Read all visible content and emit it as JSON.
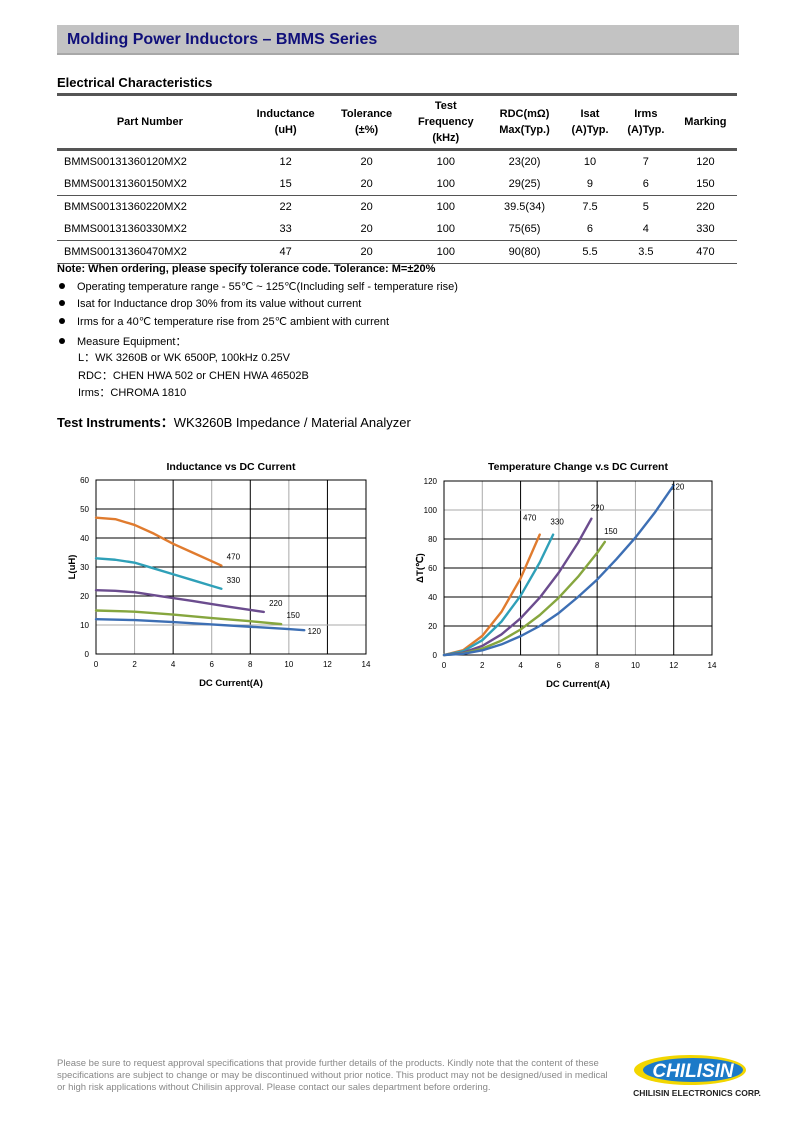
{
  "header": {
    "title": "Molding Power Inductors – BMMS Series"
  },
  "section_title": "Electrical Characteristics",
  "table": {
    "headers": [
      [
        "Part Number"
      ],
      [
        "Inductance",
        "(uH)"
      ],
      [
        "Tolerance",
        "(±%)"
      ],
      [
        "Test",
        "Frequency",
        "(kHz)"
      ],
      [
        "RDC(mΩ)",
        "Max(Typ.)"
      ],
      [
        "Isat",
        "(A)Typ."
      ],
      [
        "Irms",
        "(A)Typ."
      ],
      [
        "Marking"
      ]
    ],
    "rows": [
      [
        "BMMS00131360120MX2",
        "12",
        "20",
        "100",
        "23(20)",
        "10",
        "7",
        "120"
      ],
      [
        "BMMS00131360150MX2",
        "15",
        "20",
        "100",
        "29(25)",
        "9",
        "6",
        "150"
      ],
      [
        "BMMS00131360220MX2",
        "22",
        "20",
        "100",
        "39.5(34)",
        "7.5",
        "5",
        "220"
      ],
      [
        "BMMS00131360330MX2",
        "33",
        "20",
        "100",
        "75(65)",
        "6",
        "4",
        "330"
      ],
      [
        "BMMS00131360470MX2",
        "47",
        "20",
        "100",
        "90(80)",
        "5.5",
        "3.5",
        "470"
      ]
    ]
  },
  "note": "Note: When ordering, please specify tolerance code. Tolerance: M=±20%",
  "bullets": [
    "Operating temperature range - 55℃ ~ 125℃(Including self - temperature rise)",
    "Isat for Inductance drop 30% from its value without current",
    "Irms for a 40℃  temperature rise from 25℃  ambient with current",
    "Measure Equipment："
  ],
  "equipment": [
    "L：WK 3260B or WK 6500P, 100kHz 0.25V",
    "RDC：CHEN HWA 502 or CHEN HWA 46502B",
    "Irms：CHROMA 1810"
  ],
  "test_instruments": {
    "label": "Test Instruments：",
    "value": "WK3260B Impedance / Material Analyzer"
  },
  "chart_data": [
    {
      "type": "line",
      "title": "Inductance vs DC Current",
      "xlabel": "DC Current(A)",
      "ylabel": "L(uH)",
      "xlim": [
        0,
        14
      ],
      "ylim": [
        0,
        60
      ],
      "xticks": [
        0,
        2,
        4,
        6,
        8,
        10,
        12,
        14
      ],
      "yticks": [
        0,
        10,
        20,
        30,
        40,
        50,
        60
      ],
      "grid": true,
      "series": [
        {
          "name": "470",
          "color": "#e07b2e",
          "x": [
            0,
            1,
            2,
            3,
            4,
            5,
            6,
            6.5
          ],
          "y": [
            47,
            46.5,
            44.5,
            41.5,
            38,
            35,
            32,
            30.5
          ]
        },
        {
          "name": "330",
          "color": "#2fa0b8",
          "x": [
            0,
            1,
            2,
            3,
            4,
            5,
            6,
            6.5
          ],
          "y": [
            33,
            32.5,
            31.5,
            29.5,
            27.5,
            25.5,
            23.5,
            22.5
          ]
        },
        {
          "name": "220",
          "color": "#6b4c8e",
          "x": [
            0,
            1,
            2,
            3,
            4,
            5,
            6,
            7,
            8,
            8.7
          ],
          "y": [
            22,
            21.8,
            21.3,
            20.3,
            19.3,
            18.3,
            17.2,
            16.2,
            15.2,
            14.5
          ]
        },
        {
          "name": "150",
          "color": "#86a63e",
          "x": [
            0,
            2,
            4,
            6,
            8,
            9.6
          ],
          "y": [
            15,
            14.6,
            13.6,
            12.4,
            11.3,
            10.3
          ]
        },
        {
          "name": "120",
          "color": "#3d6fb4",
          "x": [
            0,
            2,
            4,
            6,
            8,
            10,
            10.8
          ],
          "y": [
            12,
            11.7,
            11,
            10.2,
            9.4,
            8.6,
            8.2
          ]
        }
      ]
    },
    {
      "type": "line",
      "title": "Temperature Change v.s DC Current",
      "xlabel": "DC Current(A)",
      "ylabel": "ΔT(℃)",
      "xlim": [
        0,
        14
      ],
      "ylim": [
        0,
        120
      ],
      "xticks": [
        0,
        2,
        4,
        6,
        8,
        10,
        12,
        14
      ],
      "yticks": [
        0,
        20,
        40,
        60,
        80,
        100,
        120
      ],
      "grid": true,
      "series": [
        {
          "name": "470",
          "color": "#e07b2e",
          "x": [
            0,
            1,
            2,
            3,
            4,
            5
          ],
          "y": [
            0,
            3.3,
            13.2,
            29.7,
            52.8,
            83
          ]
        },
        {
          "name": "330",
          "color": "#2fa0b8",
          "x": [
            0,
            1,
            2,
            3,
            4,
            5,
            5.7
          ],
          "y": [
            0,
            2.6,
            10.2,
            23,
            40.8,
            63.8,
            83
          ]
        },
        {
          "name": "220",
          "color": "#6b4c8e",
          "x": [
            0,
            1,
            2,
            3,
            4,
            5,
            6,
            7,
            7.7
          ],
          "y": [
            0,
            1.6,
            6.3,
            14.2,
            25.3,
            39.5,
            56.9,
            77.4,
            94
          ]
        },
        {
          "name": "150",
          "color": "#86a63e",
          "x": [
            0,
            1,
            2,
            3,
            4,
            5,
            6,
            7,
            8,
            8.4
          ],
          "y": [
            0,
            1.1,
            4.4,
            9.9,
            17.6,
            27.5,
            39.6,
            53.9,
            70.4,
            78
          ]
        },
        {
          "name": "120",
          "color": "#3d6fb4",
          "x": [
            0,
            1,
            2,
            3,
            4,
            5,
            6,
            7,
            8,
            9,
            10,
            11,
            12
          ],
          "y": [
            0,
            0.8,
            3.2,
            7.3,
            13,
            20,
            29,
            40,
            52,
            66,
            81,
            98,
            117
          ]
        }
      ]
    }
  ],
  "footer": {
    "disclaimer": "Please be sure to request approval specifications that provide further details of the products. Kindly note that the content of these specifications are subject to change or may be discontinued without prior notice. This product may not be designed/used in medical or high risk applications without Chilisin approval. Please contact our sales department before ordering.",
    "logo_text": "CHILISIN",
    "company": "CHILISIN ELECTRONICS CORP."
  }
}
